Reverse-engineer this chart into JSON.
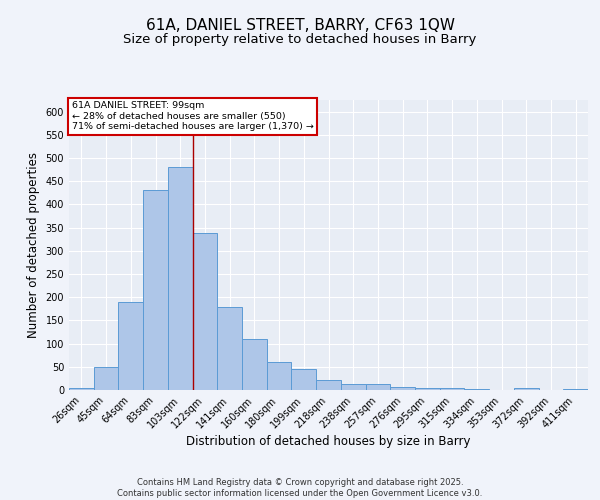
{
  "title1": "61A, DANIEL STREET, BARRY, CF63 1QW",
  "title2": "Size of property relative to detached houses in Barry",
  "xlabel": "Distribution of detached houses by size in Barry",
  "ylabel": "Number of detached properties",
  "categories": [
    "26sqm",
    "45sqm",
    "64sqm",
    "83sqm",
    "103sqm",
    "122sqm",
    "141sqm",
    "160sqm",
    "180sqm",
    "199sqm",
    "218sqm",
    "238sqm",
    "257sqm",
    "276sqm",
    "295sqm",
    "315sqm",
    "334sqm",
    "353sqm",
    "372sqm",
    "392sqm",
    "411sqm"
  ],
  "values": [
    5,
    50,
    190,
    430,
    480,
    338,
    178,
    110,
    60,
    45,
    22,
    12,
    12,
    7,
    4,
    4,
    2,
    1,
    5,
    1,
    3
  ],
  "bar_color": "#aec6e8",
  "bar_edge_color": "#5b9bd5",
  "background_color": "#e8edf5",
  "grid_color": "#ffffff",
  "red_line_x": 4.5,
  "annotation_text": "61A DANIEL STREET: 99sqm\n← 28% of detached houses are smaller (550)\n71% of semi-detached houses are larger (1,370) →",
  "annotation_box_color": "#ffffff",
  "annotation_box_edge": "#cc0000",
  "ylim": [
    0,
    625
  ],
  "yticks": [
    0,
    50,
    100,
    150,
    200,
    250,
    300,
    350,
    400,
    450,
    500,
    550,
    600
  ],
  "footer": "Contains HM Land Registry data © Crown copyright and database right 2025.\nContains public sector information licensed under the Open Government Licence v3.0.",
  "title_fontsize": 11,
  "subtitle_fontsize": 9.5,
  "label_fontsize": 8.5,
  "tick_fontsize": 7,
  "footer_fontsize": 6
}
